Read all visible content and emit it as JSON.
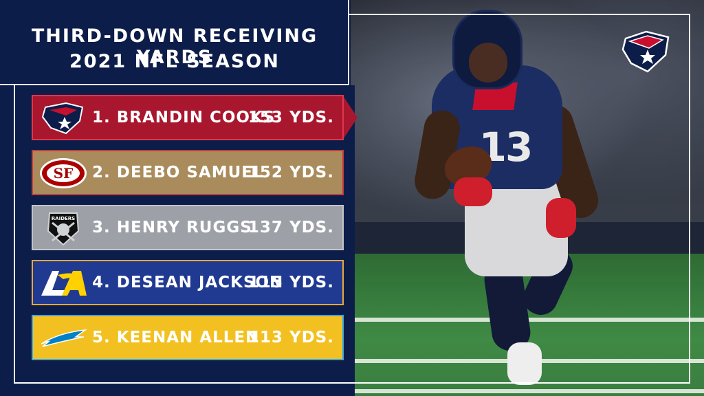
{
  "title": {
    "line1": "THIRD-DOWN RECEIVING YARDS",
    "line2": "2021 NFL SEASON"
  },
  "rows": [
    {
      "rank_name": "1. BRANDIN COOKS",
      "yards": "153 YDS.",
      "team_logo": "texans-logo",
      "bg": "#a8172e"
    },
    {
      "rank_name": "2. DEEBO SAMUEL",
      "yards": "152 YDS.",
      "team_logo": "49ers-logo",
      "bg": "#a98b5c"
    },
    {
      "rank_name": "3. HENRY RUGGS",
      "yards": "137 YDS.",
      "team_logo": "raiders-logo",
      "bg": "#9da1a7"
    },
    {
      "rank_name": "4. DESEAN JACKSON",
      "yards": "115 YDS.",
      "team_logo": "rams-logo",
      "bg": "#213a91"
    },
    {
      "rank_name": "5. KEENAN ALLEN",
      "yards": "113 YDS.",
      "team_logo": "chargers-logo",
      "bg": "#f2c121"
    }
  ],
  "logo_text": {
    "niners": "SF",
    "raiders": "RAIDERS"
  },
  "player_jersey_number": "13",
  "colors": {
    "navy": "#0d1d4a",
    "texans_red": "#c8102e"
  }
}
